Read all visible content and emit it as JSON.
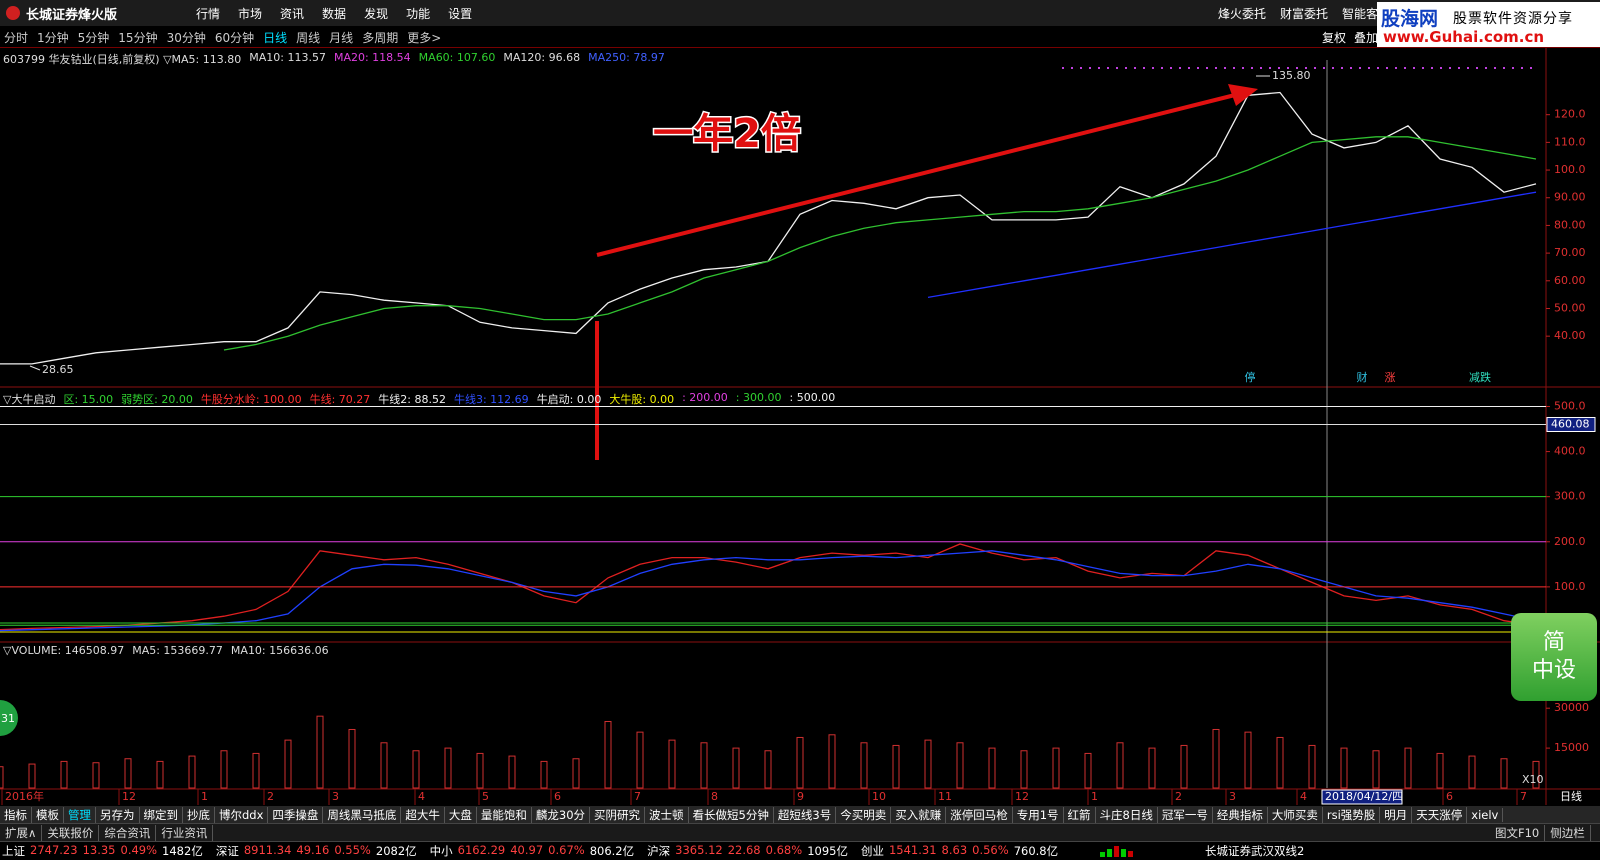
{
  "title_bar": {
    "app": "长城证券烽火版",
    "menus": [
      "行情",
      "市场",
      "资讯",
      "数据",
      "发现",
      "功能",
      "设置"
    ],
    "right": [
      "烽火委托",
      "财富委托",
      "智能客"
    ]
  },
  "logo": {
    "name": "股海网",
    "slogan": "股票软件资源分享",
    "url": "www.Guhai.com.cn"
  },
  "period_bar": {
    "items": [
      "分时",
      "1分钟",
      "5分钟",
      "15分钟",
      "30分钟",
      "60分钟",
      "日线",
      "周线",
      "月线",
      "多周期",
      "更多>"
    ],
    "active": 6,
    "right": [
      "复权",
      "叠加"
    ]
  },
  "chart_data": [
    {
      "type": "line",
      "header": [
        {
          "text": "603799 华友钴业(日线,前复权) ▽MA5: 113.80",
          "color": "#dddddd"
        },
        {
          "text": "MA10: 113.57",
          "color": "#dddddd"
        },
        {
          "text": "MA20: 118.54",
          "color": "#e040e0"
        },
        {
          "text": "MA60: 107.60",
          "color": "#30d030"
        },
        {
          "text": "MA120: 96.68",
          "color": "#dddddd"
        },
        {
          "text": "MA250: 78.97",
          "color": "#4060ff"
        }
      ],
      "annotation": "一年2倍",
      "high_label": "135.80",
      "low_label": "28.65",
      "markers": [
        {
          "text": "停",
          "color": "#30c0e0"
        },
        {
          "text": "财",
          "color": "#30c0e0"
        },
        {
          "text": "涨",
          "color": "#ff4040"
        },
        {
          "text": "减跌",
          "color": "#30e0c0"
        }
      ],
      "ylim": [
        22,
        143
      ],
      "yticks": [
        {
          "value": 40,
          "label": "40.00"
        },
        {
          "value": 50,
          "label": "50.00"
        },
        {
          "value": 60,
          "label": "60.00"
        },
        {
          "value": 70,
          "label": "70.00"
        },
        {
          "value": 80,
          "label": "80.00"
        },
        {
          "value": 90,
          "label": "90.00"
        },
        {
          "value": 100,
          "label": "100.0"
        },
        {
          "value": 110,
          "label": "110.0"
        },
        {
          "value": 120,
          "label": "120.0"
        }
      ],
      "series": [
        {
          "color": "#f0f0f0",
          "values": [
            30,
            30,
            32,
            34,
            35,
            36,
            37,
            38,
            38,
            43,
            56,
            55,
            53,
            52,
            51,
            45,
            43,
            42,
            41,
            52,
            57,
            61,
            64,
            65,
            67,
            84,
            89,
            88,
            86,
            90,
            91,
            82,
            82,
            82,
            83,
            94,
            90,
            95,
            105,
            127,
            128,
            113,
            108,
            110,
            116,
            104,
            101,
            92,
            95
          ]
        },
        {
          "color": "#30c030",
          "values": [
            null,
            null,
            null,
            null,
            null,
            null,
            null,
            35,
            37,
            40,
            44,
            47,
            50,
            51,
            51,
            50,
            48,
            46,
            46,
            48,
            52,
            56,
            61,
            64,
            67,
            72,
            76,
            79,
            81,
            82,
            83,
            84,
            85,
            85,
            86,
            88,
            90,
            93,
            96,
            100,
            105,
            110,
            111,
            112,
            112,
            110,
            108,
            106,
            104
          ]
        },
        {
          "color": "#2030ff",
          "values": [
            null,
            null,
            null,
            null,
            null,
            null,
            null,
            null,
            null,
            null,
            null,
            null,
            null,
            null,
            null,
            null,
            null,
            null,
            null,
            null,
            null,
            null,
            null,
            null,
            null,
            null,
            null,
            null,
            null,
            54,
            56,
            58,
            60,
            62,
            64,
            66,
            68,
            70,
            72,
            74,
            76,
            78,
            80,
            82,
            84,
            86,
            88,
            90,
            92
          ]
        }
      ]
    },
    {
      "type": "line",
      "title": "▽大牛启动",
      "legend": [
        {
          "label": "区: 15.00",
          "value": 15,
          "color": "#30d030",
          "level": true
        },
        {
          "label": "弱势区: 20.00",
          "value": 20,
          "color": "#30d030",
          "level": true
        },
        {
          "label": "牛股分水岭: 100.00",
          "value": 100,
          "color": "#ff3030",
          "level": true
        },
        {
          "label": "牛线: 70.27",
          "value": 70.27,
          "color": "#ff3030"
        },
        {
          "label": "牛线2: 88.52",
          "value": 88.52,
          "color": "#f0f0f0"
        },
        {
          "label": "牛线3: 112.69",
          "value": 112.69,
          "color": "#3050ff"
        },
        {
          "label": "牛启动: 0.00",
          "value": 0,
          "color": "#f0f0f0"
        },
        {
          "label": "大牛股: 0.00",
          "value": 0,
          "color": "#f0f000",
          "level": true
        },
        {
          "label": ": 200.00",
          "value": 200,
          "color": "#e040e0",
          "level": true
        },
        {
          "label": ": 300.00",
          "value": 300,
          "color": "#30d030",
          "level": true
        },
        {
          "label": ": 500.00",
          "value": 500,
          "color": "#f0f0f0",
          "level": true
        }
      ],
      "cursor_value": {
        "value": 460.08,
        "label": "460.08"
      },
      "ylim": [
        -20,
        541
      ],
      "yticks": [
        {
          "value": 100,
          "label": "100.0"
        },
        {
          "value": 200,
          "label": "200.0"
        },
        {
          "value": 300,
          "label": "300.0"
        },
        {
          "value": 400,
          "label": "400.0"
        },
        {
          "value": 500,
          "label": "500.0"
        }
      ],
      "series": [
        {
          "color": "#e02020",
          "values": [
            5,
            8,
            10,
            12,
            15,
            20,
            25,
            35,
            50,
            90,
            180,
            170,
            160,
            165,
            150,
            130,
            110,
            80,
            65,
            120,
            150,
            165,
            165,
            155,
            140,
            165,
            175,
            170,
            175,
            165,
            195,
            175,
            160,
            165,
            135,
            120,
            130,
            125,
            180,
            170,
            140,
            110,
            80,
            70,
            80,
            60,
            50,
            25,
            15
          ]
        },
        {
          "color": "#2040ff",
          "values": [
            3,
            5,
            7,
            9,
            11,
            13,
            16,
            20,
            25,
            40,
            100,
            140,
            150,
            148,
            140,
            125,
            110,
            90,
            80,
            100,
            130,
            150,
            160,
            165,
            160,
            160,
            165,
            168,
            165,
            170,
            175,
            180,
            170,
            160,
            145,
            130,
            125,
            125,
            135,
            150,
            140,
            120,
            100,
            80,
            75,
            65,
            55,
            40,
            25
          ]
        }
      ]
    },
    {
      "type": "bar",
      "header": [
        {
          "text": "▽VOLUME: 146508.97",
          "color": "#dddddd"
        },
        {
          "text": "MA5: 153669.77",
          "color": "#dddddd"
        },
        {
          "text": "MA10: 156636.06",
          "color": "#dddddd"
        }
      ],
      "color": "#d03030",
      "ylim": [
        0,
        50000
      ],
      "yticks": [
        15000,
        30000
      ],
      "values": [
        8000,
        9000,
        10000,
        9500,
        11000,
        10000,
        12000,
        14000,
        13000,
        18000,
        27000,
        22000,
        17000,
        14000,
        15000,
        13000,
        12000,
        10000,
        11000,
        25000,
        21000,
        18000,
        17000,
        15000,
        14000,
        19000,
        20000,
        17000,
        16000,
        18000,
        17000,
        15000,
        14000,
        15000,
        13000,
        17000,
        15000,
        16000,
        22000,
        21000,
        19000,
        16000,
        15000,
        14000,
        15000,
        13000,
        12000,
        11000,
        10000
      ]
    }
  ],
  "date_axis": {
    "labels": [
      "2016年",
      "12",
      "1",
      "2",
      "3",
      "4",
      "5",
      "6",
      "7",
      "8",
      "9",
      "10",
      "11",
      "12",
      "1",
      "2",
      "3",
      "4",
      "6",
      "7"
    ],
    "cursor_label": "2018/04/12/四",
    "period": "日线",
    "zoom": "X10"
  },
  "tabs": {
    "items": [
      "指标",
      "模板",
      "管理",
      "另存为",
      "绑定到",
      "抄底",
      "博尔ddx",
      "四季操盘",
      "周线黑马抵底",
      "超大牛",
      "大盘",
      "量能饱和",
      "麟龙30分",
      "买阴研究",
      "波士顿",
      "看长做短5分钟",
      "超短线3号",
      "今买明卖",
      "买入就赚",
      "涨停回马枪",
      "专用1号",
      "红箭",
      "斗庄8日线",
      "冠军一号",
      "经典指标",
      "大师买卖",
      "rsi强势股",
      "明月",
      "天天涨停",
      "xielv"
    ],
    "active": 2
  },
  "sub_tabs": {
    "left": [
      "扩展∧",
      "关联报价",
      "综合资讯",
      "行业资讯"
    ],
    "right": [
      "图文F10",
      "侧边栏"
    ]
  },
  "status": {
    "items": [
      {
        "text": "上证",
        "color": "#ffffff"
      },
      {
        "text": "2747.23",
        "color": "#ff4040"
      },
      {
        "text": "13.35",
        "color": "#ff4040"
      },
      {
        "text": "0.49%",
        "color": "#ff4040"
      },
      {
        "text": "1482亿",
        "color": "#ffffff"
      },
      {
        "text": "深证",
        "color": "#ffffff"
      },
      {
        "text": "8911.34",
        "color": "#ff4040"
      },
      {
        "text": "49.16",
        "color": "#ff4040"
      },
      {
        "text": "0.55%",
        "color": "#ff4040"
      },
      {
        "text": "2082亿",
        "color": "#ffffff"
      },
      {
        "text": "中小",
        "color": "#ffffff"
      },
      {
        "text": "6162.29",
        "color": "#ff4040"
      },
      {
        "text": "40.97",
        "color": "#ff4040"
      },
      {
        "text": "0.67%",
        "color": "#ff4040"
      },
      {
        "text": "806.2亿",
        "color": "#ffffff"
      },
      {
        "text": "沪深",
        "color": "#ffffff"
      },
      {
        "text": "3365.12",
        "color": "#ff4040"
      },
      {
        "text": "22.68",
        "color": "#ff4040"
      },
      {
        "text": "0.68%",
        "color": "#ff4040"
      },
      {
        "text": "1095亿",
        "color": "#ffffff"
      },
      {
        "text": "创业",
        "color": "#ffffff"
      },
      {
        "text": "1541.31",
        "color": "#ff4040"
      },
      {
        "text": "8.63",
        "color": "#ff4040"
      },
      {
        "text": "0.56%",
        "color": "#ff4040"
      },
      {
        "text": "760.8亿",
        "color": "#ffffff"
      }
    ],
    "right": "长城证券武汉双线2"
  },
  "side_button": {
    "lines": [
      "简",
      "中设"
    ]
  },
  "left_badge": "31"
}
